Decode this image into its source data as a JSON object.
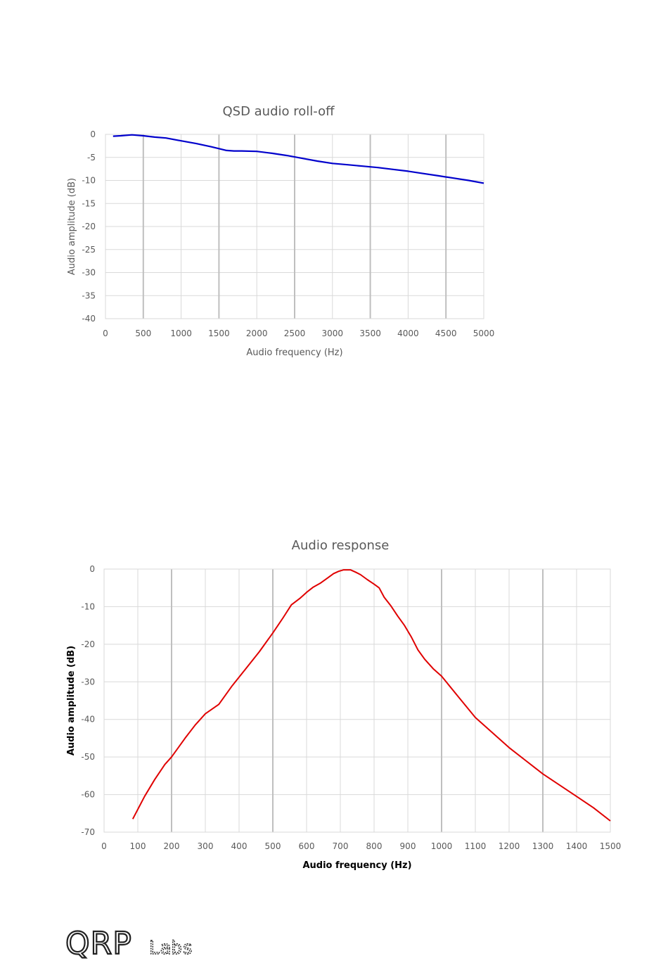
{
  "chart_data": [
    {
      "type": "line",
      "title": "QSD audio roll-off",
      "xlabel": "Audio frequency (Hz)",
      "ylabel": "Audio amplitude (dB)",
      "xlim": [
        0,
        5000
      ],
      "ylim": [
        -40,
        0
      ],
      "xticks": [
        "0",
        "500",
        "1000",
        "1500",
        "2000",
        "2500",
        "3000",
        "3500",
        "4000",
        "4500",
        "5000"
      ],
      "yticks": [
        "0",
        "-5",
        "-10",
        "-15",
        "-20",
        "-25",
        "-30",
        "-35",
        "-40"
      ],
      "color": "#0000cc",
      "series": [
        {
          "x": [
            100,
            200,
            350,
            500,
            650,
            800,
            1000,
            1200,
            1400,
            1600,
            1700,
            1800,
            2000,
            2200,
            2400,
            2600,
            2800,
            3000,
            3200,
            3400,
            3600,
            3800,
            4000,
            4200,
            4400,
            4600,
            4800,
            5000
          ],
          "values": [
            -0.4,
            -0.3,
            -0.1,
            -0.3,
            -0.6,
            -0.8,
            -1.4,
            -2.0,
            -2.7,
            -3.5,
            -3.6,
            -3.6,
            -3.7,
            -4.1,
            -4.6,
            -5.2,
            -5.8,
            -6.3,
            -6.6,
            -6.9,
            -7.2,
            -7.6,
            -8.0,
            -8.5,
            -9.0,
            -9.5,
            -10.0,
            -10.6
          ]
        }
      ]
    },
    {
      "type": "line",
      "title": "Audio response",
      "xlabel": "Audio frequency (Hz)",
      "ylabel": "Audio amplitude (dB)",
      "xlim": [
        0,
        1500
      ],
      "ylim": [
        -70,
        0
      ],
      "xticks": [
        "0",
        "100",
        "200",
        "300",
        "400",
        "500",
        "600",
        "700",
        "800",
        "900",
        "1000",
        "1100",
        "1200",
        "1300",
        "1400",
        "1500"
      ],
      "yticks": [
        "0",
        "-10",
        "-20",
        "-30",
        "-40",
        "-50",
        "-60",
        "-70"
      ],
      "color": "#e00000",
      "series": [
        {
          "x": [
            85,
            120,
            150,
            180,
            200,
            240,
            270,
            300,
            340,
            380,
            420,
            460,
            500,
            530,
            555,
            580,
            600,
            620,
            640,
            660,
            680,
            695,
            710,
            730,
            745,
            760,
            780,
            800,
            815,
            830,
            850,
            870,
            890,
            910,
            930,
            950,
            975,
            1000,
            1050,
            1100,
            1150,
            1200,
            1250,
            1300,
            1350,
            1400,
            1450,
            1500
          ],
          "values": [
            -66.5,
            -60.5,
            -56,
            -52,
            -50,
            -45,
            -41.5,
            -38.5,
            -36,
            -31,
            -26.5,
            -22,
            -17,
            -13,
            -9.5,
            -7.8,
            -6.2,
            -4.8,
            -3.8,
            -2.5,
            -1.2,
            -0.6,
            -0.2,
            -0.2,
            -0.8,
            -1.5,
            -2.8,
            -4.0,
            -5.0,
            -7.5,
            -9.8,
            -12.5,
            -15.0,
            -18.0,
            -21.5,
            -24.0,
            -26.5,
            -28.5,
            -34.0,
            -39.5,
            -43.5,
            -47.5,
            -51.0,
            -54.5,
            -57.5,
            -60.5,
            -63.5,
            -67.0
          ]
        }
      ]
    }
  ],
  "logo": {
    "text": "QRP Labs"
  }
}
